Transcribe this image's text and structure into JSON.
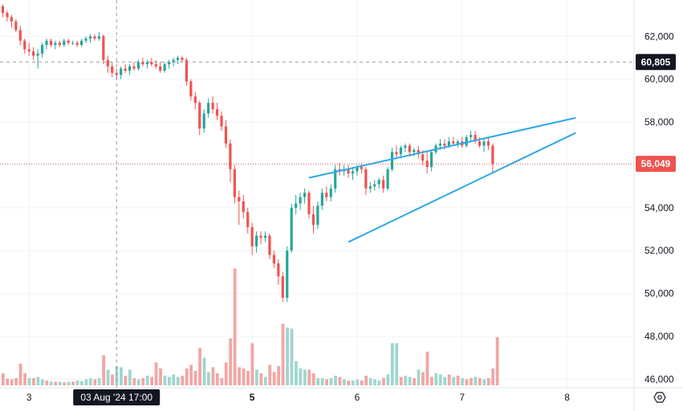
{
  "chart_data": {
    "type": "candlestick",
    "y_ticks": [
      "62,000",
      "60,000",
      "58,000",
      "56,000",
      "54,000",
      "52,000",
      "50,000",
      "48,000",
      "46,000"
    ],
    "y_tick_values": [
      62000,
      60000,
      58000,
      56000,
      54000,
      52000,
      50000,
      48000,
      46000
    ],
    "x_ticks": [
      "3",
      "5",
      "6",
      "7",
      "8"
    ],
    "crosshair_time_label": "03 Aug '24   17:00",
    "crosshair_price_label": "60,805",
    "crosshair_price_value": 60805,
    "last_price_label": "56,049",
    "last_price_value": 56049,
    "ylim": [
      45600,
      63700
    ],
    "colors": {
      "up": "#26a69a",
      "down": "#ef5350",
      "up_volume": "#9fd6cf",
      "down_volume": "#f2a6a4",
      "trendline": "#2ea8e6",
      "last_price_tag": "#ef5350",
      "crosshair_tag": "#131722"
    },
    "candles": [
      [
        63400,
        63500,
        62900,
        63100,
        "down"
      ],
      [
        63100,
        63200,
        62700,
        62900,
        "down"
      ],
      [
        62900,
        63000,
        62400,
        62700,
        "down"
      ],
      [
        62700,
        62800,
        62200,
        62300,
        "down"
      ],
      [
        62300,
        62500,
        61600,
        61800,
        "down"
      ],
      [
        61800,
        61900,
        61200,
        61400,
        "down"
      ],
      [
        61400,
        61700,
        61100,
        61300,
        "down"
      ],
      [
        61300,
        61500,
        60900,
        61100,
        "down"
      ],
      [
        61100,
        61400,
        60500,
        61200,
        "up"
      ],
      [
        61200,
        61700,
        61000,
        61600,
        "up"
      ],
      [
        61600,
        61900,
        61400,
        61800,
        "up"
      ],
      [
        61800,
        61900,
        61500,
        61600,
        "down"
      ],
      [
        61600,
        61800,
        61400,
        61700,
        "up"
      ],
      [
        61700,
        61800,
        61500,
        61600,
        "down"
      ],
      [
        61600,
        61900,
        61500,
        61800,
        "up"
      ],
      [
        61800,
        61900,
        61600,
        61700,
        "down"
      ],
      [
        61700,
        61800,
        61600,
        61700,
        "up"
      ],
      [
        61700,
        61800,
        61500,
        61600,
        "down"
      ],
      [
        61600,
        61900,
        61500,
        61800,
        "up"
      ],
      [
        61800,
        62000,
        61700,
        61900,
        "up"
      ],
      [
        61900,
        62100,
        61700,
        62000,
        "up"
      ],
      [
        62000,
        62100,
        61800,
        61900,
        "down"
      ],
      [
        61900,
        62200,
        61800,
        62000,
        "up"
      ],
      [
        62000,
        62100,
        60700,
        60900,
        "down"
      ],
      [
        60900,
        61100,
        60300,
        60600,
        "down"
      ],
      [
        60600,
        60800,
        60100,
        60300,
        "down"
      ],
      [
        60300,
        60500,
        60000,
        60200,
        "down"
      ],
      [
        60200,
        60600,
        60000,
        60500,
        "up"
      ],
      [
        60500,
        60700,
        60300,
        60400,
        "down"
      ],
      [
        60400,
        60700,
        60200,
        60600,
        "up"
      ],
      [
        60600,
        60800,
        60400,
        60500,
        "down"
      ],
      [
        60500,
        60900,
        60400,
        60800,
        "up"
      ],
      [
        60800,
        61000,
        60600,
        60700,
        "down"
      ],
      [
        60700,
        60900,
        60500,
        60800,
        "up"
      ],
      [
        60800,
        61000,
        60600,
        60700,
        "down"
      ],
      [
        60700,
        60900,
        60500,
        60600,
        "down"
      ],
      [
        60600,
        60800,
        60300,
        60400,
        "down"
      ],
      [
        60400,
        60800,
        60300,
        60700,
        "up"
      ],
      [
        60700,
        60900,
        60500,
        60800,
        "up"
      ],
      [
        60800,
        61000,
        60600,
        60900,
        "up"
      ],
      [
        60900,
        61100,
        60700,
        61000,
        "up"
      ],
      [
        61000,
        61100,
        60800,
        60900,
        "down"
      ],
      [
        60900,
        61000,
        59700,
        59900,
        "down"
      ],
      [
        59900,
        60000,
        59000,
        59200,
        "down"
      ],
      [
        59200,
        59400,
        58600,
        58900,
        "down"
      ],
      [
        58900,
        59000,
        57400,
        57700,
        "down"
      ],
      [
        57700,
        58600,
        57500,
        58400,
        "up"
      ],
      [
        58400,
        59100,
        58200,
        58900,
        "up"
      ],
      [
        58900,
        59200,
        58400,
        58600,
        "down"
      ],
      [
        58600,
        58900,
        58100,
        58300,
        "down"
      ],
      [
        58300,
        58500,
        57600,
        57800,
        "down"
      ],
      [
        57800,
        58100,
        56800,
        57000,
        "down"
      ],
      [
        57000,
        57200,
        55200,
        55800,
        "down"
      ],
      [
        55800,
        56000,
        54200,
        54500,
        "down"
      ],
      [
        54500,
        54800,
        53200,
        54300,
        "down"
      ],
      [
        54300,
        54600,
        53500,
        53800,
        "down"
      ],
      [
        53800,
        54000,
        52800,
        53100,
        "down"
      ],
      [
        53100,
        53300,
        51800,
        52200,
        "down"
      ],
      [
        52200,
        52900,
        51900,
        52700,
        "up"
      ],
      [
        52700,
        52900,
        52300,
        52600,
        "down"
      ],
      [
        52600,
        52900,
        52400,
        52700,
        "up"
      ],
      [
        52700,
        52800,
        51600,
        51800,
        "down"
      ],
      [
        51800,
        52000,
        51200,
        51400,
        "down"
      ],
      [
        51400,
        51600,
        50400,
        50800,
        "down"
      ],
      [
        50800,
        51000,
        49600,
        49800,
        "down"
      ],
      [
        49800,
        52200,
        49600,
        52000,
        "up"
      ],
      [
        52000,
        54200,
        51900,
        54000,
        "up"
      ],
      [
        54000,
        54600,
        53700,
        54200,
        "up"
      ],
      [
        54200,
        54700,
        53900,
        54500,
        "up"
      ],
      [
        54500,
        54900,
        54200,
        54700,
        "up"
      ],
      [
        54700,
        54800,
        53500,
        53700,
        "down"
      ],
      [
        53700,
        54100,
        52800,
        53200,
        "down"
      ],
      [
        53200,
        54300,
        53000,
        54100,
        "up"
      ],
      [
        54100,
        54900,
        53900,
        54700,
        "up"
      ],
      [
        54700,
        55000,
        54300,
        54500,
        "down"
      ],
      [
        54500,
        55100,
        54300,
        54900,
        "up"
      ],
      [
        54900,
        56000,
        54700,
        55800,
        "up"
      ],
      [
        55800,
        56100,
        55500,
        55700,
        "down"
      ],
      [
        55700,
        56000,
        55500,
        55800,
        "up"
      ],
      [
        55800,
        56000,
        55400,
        55600,
        "down"
      ],
      [
        55600,
        55900,
        55300,
        55700,
        "up"
      ],
      [
        55700,
        56000,
        55500,
        55900,
        "up"
      ],
      [
        55900,
        56100,
        55600,
        55800,
        "down"
      ],
      [
        55800,
        55900,
        54600,
        54900,
        "down"
      ],
      [
        54900,
        55200,
        54700,
        55000,
        "up"
      ],
      [
        55000,
        55300,
        54800,
        55100,
        "up"
      ],
      [
        55100,
        55400,
        54900,
        55300,
        "up"
      ],
      [
        55300,
        55500,
        54700,
        54900,
        "down"
      ],
      [
        54900,
        55900,
        54800,
        55800,
        "up"
      ],
      [
        55800,
        56800,
        55700,
        56600,
        "up"
      ],
      [
        56600,
        56900,
        56300,
        56500,
        "down"
      ],
      [
        56500,
        56900,
        56300,
        56800,
        "up"
      ],
      [
        56800,
        57000,
        56600,
        56900,
        "up"
      ],
      [
        56900,
        57000,
        56400,
        56600,
        "down"
      ],
      [
        56600,
        56800,
        56400,
        56700,
        "up"
      ],
      [
        56700,
        56900,
        56300,
        56500,
        "down"
      ],
      [
        56500,
        56700,
        56000,
        56200,
        "down"
      ],
      [
        56200,
        56600,
        55600,
        55900,
        "down"
      ],
      [
        55900,
        56700,
        55700,
        56600,
        "up"
      ],
      [
        56600,
        57000,
        56500,
        56900,
        "up"
      ],
      [
        56900,
        57200,
        56700,
        57000,
        "up"
      ],
      [
        57000,
        57200,
        56700,
        56900,
        "down"
      ],
      [
        56900,
        57300,
        56800,
        57100,
        "up"
      ],
      [
        57100,
        57300,
        56900,
        57000,
        "down"
      ],
      [
        57000,
        57200,
        56800,
        57100,
        "up"
      ],
      [
        57100,
        57300,
        56800,
        56900,
        "down"
      ],
      [
        56900,
        57400,
        56800,
        57300,
        "up"
      ],
      [
        57300,
        57600,
        57100,
        57400,
        "up"
      ],
      [
        57400,
        57600,
        57000,
        57100,
        "down"
      ],
      [
        57100,
        57300,
        56800,
        56900,
        "down"
      ],
      [
        56900,
        57200,
        56600,
        57100,
        "up"
      ],
      [
        57100,
        57300,
        56700,
        56900,
        "down"
      ],
      [
        56900,
        57000,
        55600,
        56049,
        "down"
      ]
    ],
    "volumes": [
      [
        1.0,
        "down"
      ],
      [
        0.55,
        "down"
      ],
      [
        0.5,
        "down"
      ],
      [
        0.6,
        "down"
      ],
      [
        1.8,
        "down"
      ],
      [
        1.0,
        "down"
      ],
      [
        0.6,
        "up"
      ],
      [
        0.6,
        "down"
      ],
      [
        0.7,
        "up"
      ],
      [
        0.5,
        "up"
      ],
      [
        0.4,
        "down"
      ],
      [
        0.3,
        "up"
      ],
      [
        0.3,
        "down"
      ],
      [
        0.3,
        "up"
      ],
      [
        0.25,
        "down"
      ],
      [
        0.3,
        "up"
      ],
      [
        0.3,
        "down"
      ],
      [
        0.4,
        "up"
      ],
      [
        0.35,
        "up"
      ],
      [
        0.5,
        "up"
      ],
      [
        0.6,
        "up"
      ],
      [
        0.5,
        "down"
      ],
      [
        0.6,
        "up"
      ],
      [
        2.5,
        "down"
      ],
      [
        1.3,
        "up"
      ],
      [
        0.9,
        "down"
      ],
      [
        1.6,
        "up"
      ],
      [
        1.5,
        "up"
      ],
      [
        0.8,
        "down"
      ],
      [
        1.3,
        "up"
      ],
      [
        0.6,
        "down"
      ],
      [
        0.5,
        "up"
      ],
      [
        0.6,
        "down"
      ],
      [
        0.8,
        "up"
      ],
      [
        0.7,
        "down"
      ],
      [
        1.9,
        "down"
      ],
      [
        1.4,
        "down"
      ],
      [
        0.8,
        "up"
      ],
      [
        0.7,
        "up"
      ],
      [
        0.9,
        "up"
      ],
      [
        0.7,
        "up"
      ],
      [
        0.8,
        "down"
      ],
      [
        1.4,
        "down"
      ],
      [
        1.7,
        "down"
      ],
      [
        1.2,
        "down"
      ],
      [
        3.1,
        "down"
      ],
      [
        2.3,
        "up"
      ],
      [
        1.1,
        "up"
      ],
      [
        1.5,
        "down"
      ],
      [
        1.0,
        "down"
      ],
      [
        0.6,
        "down"
      ],
      [
        1.9,
        "down"
      ],
      [
        3.9,
        "down"
      ],
      [
        9.7,
        "down"
      ],
      [
        1.5,
        "down"
      ],
      [
        1.4,
        "down"
      ],
      [
        1.2,
        "down"
      ],
      [
        3.5,
        "down"
      ],
      [
        1.3,
        "up"
      ],
      [
        1.0,
        "down"
      ],
      [
        0.7,
        "up"
      ],
      [
        1.7,
        "down"
      ],
      [
        1.1,
        "down"
      ],
      [
        1.6,
        "down"
      ],
      [
        5.1,
        "down"
      ],
      [
        4.8,
        "up"
      ],
      [
        4.7,
        "up"
      ],
      [
        2.0,
        "up"
      ],
      [
        1.4,
        "up"
      ],
      [
        1.3,
        "up"
      ],
      [
        1.3,
        "down"
      ],
      [
        1.0,
        "down"
      ],
      [
        0.6,
        "up"
      ],
      [
        0.6,
        "up"
      ],
      [
        0.5,
        "down"
      ],
      [
        0.6,
        "up"
      ],
      [
        0.8,
        "up"
      ],
      [
        0.7,
        "down"
      ],
      [
        0.5,
        "up"
      ],
      [
        0.4,
        "down"
      ],
      [
        0.4,
        "up"
      ],
      [
        0.5,
        "up"
      ],
      [
        0.4,
        "down"
      ],
      [
        0.8,
        "down"
      ],
      [
        0.6,
        "up"
      ],
      [
        0.5,
        "up"
      ],
      [
        0.4,
        "up"
      ],
      [
        0.6,
        "down"
      ],
      [
        0.9,
        "up"
      ],
      [
        3.5,
        "up"
      ],
      [
        3.5,
        "up"
      ],
      [
        0.7,
        "down"
      ],
      [
        0.8,
        "up"
      ],
      [
        0.7,
        "up"
      ],
      [
        0.6,
        "down"
      ],
      [
        1.3,
        "up"
      ],
      [
        1.1,
        "down"
      ],
      [
        2.8,
        "down"
      ],
      [
        0.7,
        "down"
      ],
      [
        1.0,
        "up"
      ],
      [
        0.9,
        "up"
      ],
      [
        0.7,
        "up"
      ],
      [
        0.9,
        "down"
      ],
      [
        0.7,
        "up"
      ],
      [
        0.8,
        "down"
      ],
      [
        0.6,
        "up"
      ],
      [
        0.5,
        "down"
      ],
      [
        0.6,
        "down"
      ],
      [
        0.7,
        "up"
      ],
      [
        0.6,
        "down"
      ],
      [
        0.5,
        "up"
      ],
      [
        0.6,
        "down"
      ],
      [
        1.4,
        "down"
      ],
      [
        4.0,
        "down"
      ]
    ],
    "trendlines": [
      {
        "role": "upper",
        "start": {
          "bar": 70,
          "price": 55400
        },
        "end": {
          "bar": 131,
          "price": 58200
        }
      },
      {
        "role": "lower",
        "start": {
          "bar": 79,
          "price": 52400
        },
        "end": {
          "bar": 131,
          "price": 57500
        }
      }
    ],
    "crosshair_bar": 26,
    "x_tick_bars": [
      6,
      57,
      81,
      105,
      129
    ]
  }
}
